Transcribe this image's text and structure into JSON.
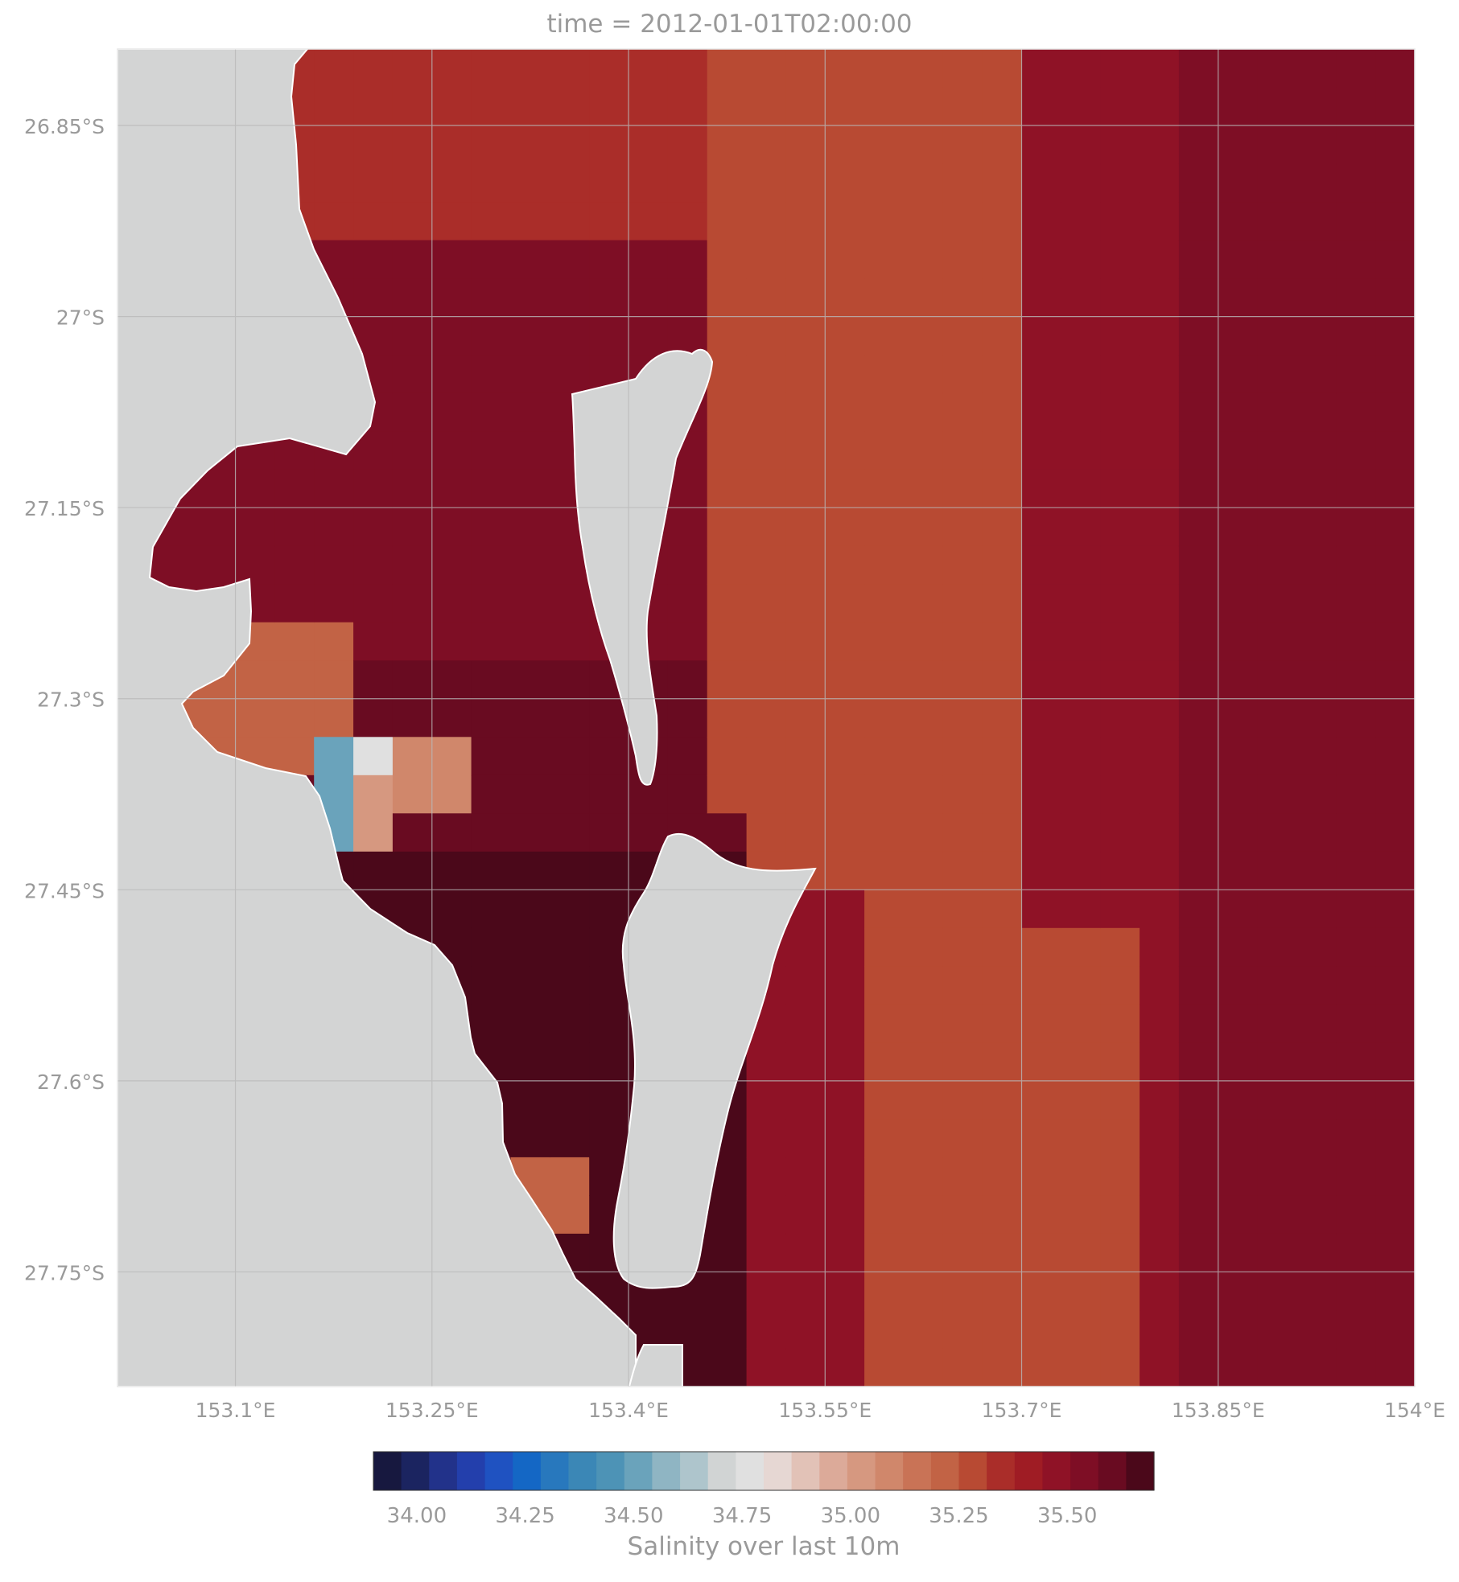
{
  "title": "time = 2012-01-01T02:00:00",
  "map": {
    "latitude_ticks": [
      "26.85°S",
      "27°S",
      "27.15°S",
      "27.3°S",
      "27.45°S",
      "27.6°S",
      "27.75°S"
    ],
    "longitude_ticks": [
      "153.1°E",
      "153.25°E",
      "153.4°E",
      "153.55°E",
      "153.7°E",
      "153.85°E",
      "154°E"
    ],
    "land_color": "#d3d4d4",
    "gridline_color": "#b9b9b9"
  },
  "colorbar": {
    "label": "Salinity over last 10m",
    "ticks": [
      "34.00",
      "34.25",
      "34.50",
      "34.75",
      "35.00",
      "35.25",
      "35.50"
    ],
    "colors": [
      "#17183f",
      "#1b2460",
      "#22328a",
      "#233fac",
      "#1f52c1",
      "#1467c5",
      "#2878bd",
      "#3b87b6",
      "#4d93b6",
      "#6aa3bb",
      "#8fb5c3",
      "#aec5cc",
      "#d1d4d4",
      "#e0e0e0",
      "#e6d7d3",
      "#e2c2b7",
      "#dcaa99",
      "#d69880",
      "#d0876b",
      "#c97356",
      "#c26345",
      "#b84a33",
      "#aa2d29",
      "#9f1c24",
      "#8f1226",
      "#7e0e25",
      "#690b21",
      "#4b081a"
    ]
  },
  "chart_data": {
    "type": "heatmap",
    "title": "time = 2012-01-01T02:00:00",
    "colorbar_label": "Salinity over last 10m",
    "colorbar_range": [
      33.9,
      35.7
    ],
    "colorbar_ticks": [
      34.0,
      34.25,
      34.5,
      34.75,
      35.0,
      35.25,
      35.5
    ],
    "lon_range": [
      153.01,
      154.0
    ],
    "lat_range": [
      -27.84,
      -26.79
    ],
    "grid_lon_step": 0.03,
    "grid_lat_step": 0.03,
    "regions": {
      "far_offshore": 35.52,
      "mid_offshore": 35.3,
      "coastal_ocean": 35.35,
      "northern_bay": 35.55,
      "central_bay": 35.62,
      "southern_bay_basin": 35.68,
      "river_mouth_low": 34.5,
      "river_mouth_fresh": 34.75,
      "river_mouth_pink": 35.05
    }
  }
}
